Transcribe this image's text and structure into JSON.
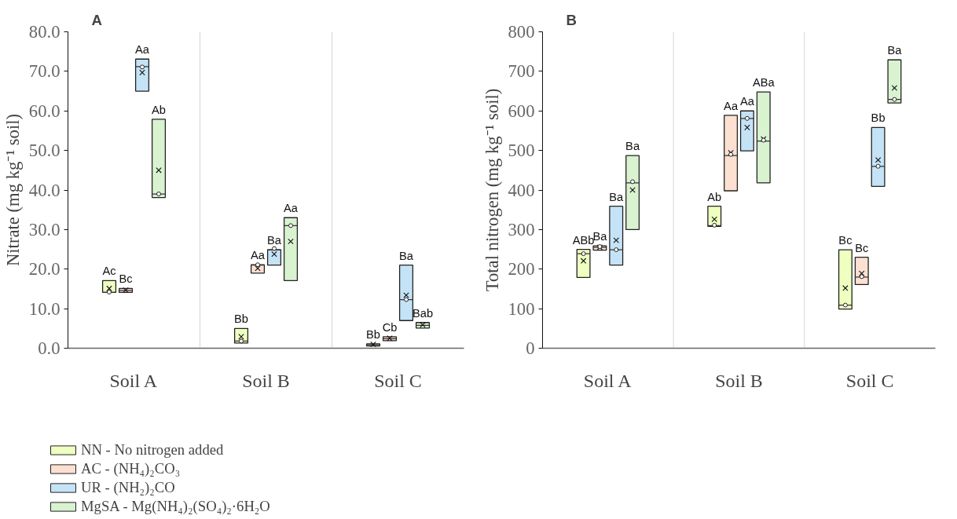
{
  "chart_data": [
    {
      "type": "box",
      "title": "A",
      "ylabel": "Nitrate (mg kg⁻¹ soil)",
      "categories": [
        "Soil A",
        "Soil B",
        "Soil C"
      ],
      "ylim": [
        0,
        80
      ],
      "yticks": [
        {
          "value": 0,
          "label": "0.0"
        },
        {
          "value": 10,
          "label": "10.0"
        },
        {
          "value": 20,
          "label": "20.0"
        },
        {
          "value": 30,
          "label": "30.0"
        },
        {
          "value": 40,
          "label": "40.0"
        },
        {
          "value": 50,
          "label": "50.0"
        },
        {
          "value": 60,
          "label": "60.0"
        },
        {
          "value": 70,
          "label": "70.0"
        },
        {
          "value": 80,
          "label": "80.0"
        }
      ],
      "legend": "bottom left",
      "series": [
        {
          "name": "NN - No nitrogen added",
          "color": "#eeffc0",
          "value_labels": [
            "Ac",
            "Bb",
            "Bb"
          ],
          "boxes": [
            {
              "low": 14.1,
              "q1": 14.1,
              "median": 14.1,
              "q3": 17.1,
              "high": 17.1,
              "mean": 15.1,
              "outliers": [
                14.2
              ]
            },
            {
              "low": 1.3,
              "q1": 1.3,
              "median": 1.8,
              "q3": 5.0,
              "high": 5.0,
              "mean": 2.9,
              "outliers": [
                1.8
              ]
            },
            {
              "low": 0.6,
              "q1": 0.6,
              "median": 0.9,
              "q3": 1.1,
              "high": 1.1,
              "mean": 1.0
            }
          ]
        },
        {
          "name": "AC - (NH₄)₂CO₃",
          "color": "#fce0d2",
          "value_labels": [
            "Bc",
            "Aa",
            "Cb"
          ],
          "boxes": [
            {
              "low": 14.1,
              "q1": 14.1,
              "median": 14.6,
              "q3": 15.1,
              "high": 15.1,
              "mean": 14.7
            },
            {
              "low": 19.0,
              "q1": 19.0,
              "median": 21.0,
              "q3": 21.1,
              "high": 21.1,
              "mean": 20.2,
              "outliers": [
                21.1
              ]
            },
            {
              "low": 1.9,
              "q1": 1.9,
              "median": 2.4,
              "q3": 2.9,
              "high": 2.9,
              "mean": 2.5
            }
          ]
        },
        {
          "name": "UR - (NH₂)₂CO",
          "color": "#c5e3f6",
          "value_labels": [
            "Aa",
            "Ba",
            "Ba"
          ],
          "boxes": [
            {
              "low": 65.0,
              "q1": 65.0,
              "median": 71.2,
              "q3": 73.1,
              "high": 73.1,
              "mean": 69.7,
              "outliers": [
                71.1
              ]
            },
            {
              "low": 21.0,
              "q1": 21.0,
              "median": 24.9,
              "q3": 24.9,
              "high": 24.9,
              "mean": 23.8,
              "outliers": [
                25.2
              ]
            },
            {
              "low": 7.0,
              "q1": 7.0,
              "median": 12.3,
              "q3": 21.0,
              "high": 21.0,
              "mean": 13.4,
              "outliers": [
                12.3
              ]
            }
          ]
        },
        {
          "name": "MgSA - Mg(NH₄)₂(SO₄)₂·6H₂O",
          "color": "#d9f2d0",
          "value_labels": [
            "Ab",
            "Aa",
            "Bab"
          ],
          "boxes": [
            {
              "low": 38.1,
              "q1": 38.1,
              "median": 39.0,
              "q3": 57.9,
              "high": 57.9,
              "mean": 45.0,
              "outliers": [
                39.0
              ]
            },
            {
              "low": 17.1,
              "q1": 17.1,
              "median": 31.0,
              "q3": 33.0,
              "high": 33.0,
              "mean": 27.0,
              "outliers": [
                31.0
              ]
            },
            {
              "low": 5.1,
              "q1": 5.1,
              "median": 5.8,
              "q3": 6.5,
              "high": 6.5,
              "mean": 5.9
            }
          ]
        }
      ]
    },
    {
      "type": "box",
      "title": "B",
      "ylabel": "Total nitrogen (mg kg⁻¹ soil)",
      "categories": [
        "Soil A",
        "Soil B",
        "Soil C"
      ],
      "ylim": [
        0,
        800
      ],
      "yticks": [
        0,
        100,
        200,
        300,
        400,
        500,
        600,
        700,
        800
      ],
      "series": [
        {
          "color": "#eeffc0",
          "value_labels": [
            "ABb",
            "Ab",
            "Bc"
          ],
          "boxes": [
            {
              "low": 179,
              "q1": 179,
              "median": 239,
              "q3": 250,
              "high": 250,
              "mean": 221,
              "outliers": [
                239
              ]
            },
            {
              "low": 308,
              "q1": 308,
              "median": 310,
              "q3": 359,
              "high": 359,
              "mean": 326,
              "outliers": [
                311
              ]
            },
            {
              "low": 99,
              "q1": 99,
              "median": 109,
              "q3": 249,
              "high": 249,
              "mean": 152,
              "outliers": [
                109
              ]
            }
          ]
        },
        {
          "color": "#fce0d2",
          "value_labels": [
            "Ba",
            "Aa",
            "Bc"
          ],
          "boxes": [
            {
              "low": 248,
              "q1": 248,
              "median": 255,
              "q3": 259,
              "high": 259,
              "mean": 255,
              "outliers": [
                257
              ]
            },
            {
              "low": 398,
              "q1": 398,
              "median": 487,
              "q3": 589,
              "high": 589,
              "mean": 494,
              "outliers": [
                490
              ]
            },
            {
              "low": 161,
              "q1": 161,
              "median": 180,
              "q3": 230,
              "high": 230,
              "mean": 189,
              "outliers": [
                181
              ]
            }
          ]
        },
        {
          "color": "#c5e3f6",
          "value_labels": [
            "Ba",
            "Aa",
            "Bb"
          ],
          "boxes": [
            {
              "low": 210,
              "q1": 210,
              "median": 249,
              "q3": 359,
              "high": 359,
              "mean": 273,
              "outliers": [
                249
              ]
            },
            {
              "low": 499,
              "q1": 499,
              "median": 581,
              "q3": 600,
              "high": 600,
              "mean": 558,
              "outliers": [
                581
              ]
            },
            {
              "low": 409,
              "q1": 409,
              "median": 460,
              "q3": 558,
              "high": 558,
              "mean": 476,
              "outliers": [
                460
              ]
            }
          ]
        },
        {
          "color": "#d9f2d0",
          "value_labels": [
            "Ba",
            "ABa",
            "Ba"
          ],
          "boxes": [
            {
              "low": 300,
              "q1": 300,
              "median": 418,
              "q3": 487,
              "high": 487,
              "mean": 400,
              "outliers": [
                421
              ]
            },
            {
              "low": 418,
              "q1": 418,
              "median": 524,
              "q3": 648,
              "high": 648,
              "mean": 529,
              "outliers": [
                526
              ]
            },
            {
              "low": 620,
              "q1": 620,
              "median": 629,
              "q3": 729,
              "high": 729,
              "mean": 658,
              "outliers": [
                629
              ]
            }
          ]
        }
      ]
    }
  ]
}
